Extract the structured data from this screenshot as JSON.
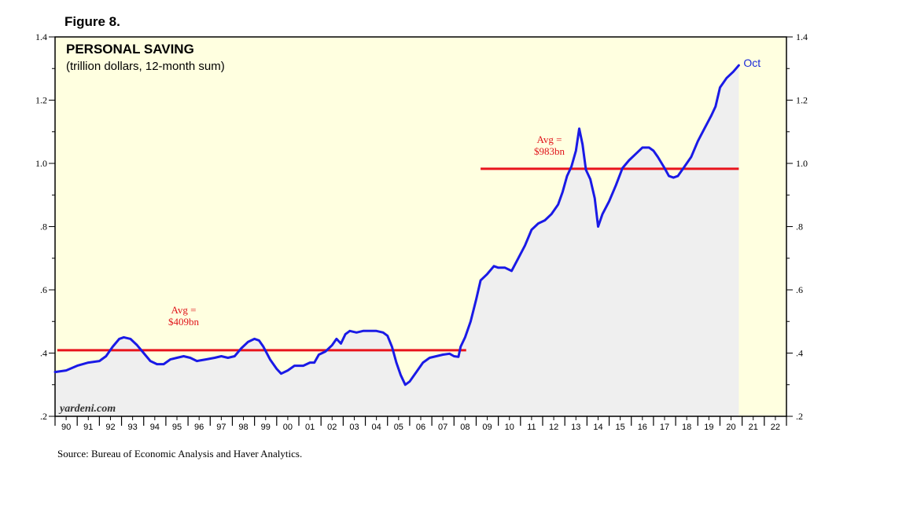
{
  "figure_label": "Figure 8.",
  "source": "Source: Bureau of Economic Analysis and Haver Analytics.",
  "colors": {
    "plot_bg": "#ffffe0",
    "area_fill": "#efefef",
    "line": "#1a1ae6",
    "avg_line": "#e8141c",
    "oct_label": "#1a2ad8"
  },
  "chart_data": {
    "type": "area",
    "title": "PERSONAL SAVING",
    "subtitle": "(trillion dollars, 12-month sum)",
    "watermark": "yardeni.com",
    "ylim": [
      0.2,
      1.4
    ],
    "xlim": [
      1990,
      2023
    ],
    "y_ticks": [
      {
        "value": 0.2,
        "label": ".2"
      },
      {
        "value": 0.4,
        "label": ".4"
      },
      {
        "value": 0.6,
        "label": ".6"
      },
      {
        "value": 0.8,
        "label": ".8"
      },
      {
        "value": 1.0,
        "label": "1.0"
      },
      {
        "value": 1.2,
        "label": "1.2"
      },
      {
        "value": 1.4,
        "label": "1.4"
      }
    ],
    "x_tick_labels": [
      "90",
      "91",
      "92",
      "93",
      "94",
      "95",
      "96",
      "97",
      "98",
      "99",
      "00",
      "01",
      "02",
      "03",
      "04",
      "05",
      "06",
      "07",
      "08",
      "09",
      "10",
      "11",
      "12",
      "13",
      "14",
      "15",
      "16",
      "17",
      "18",
      "19",
      "20",
      "21",
      "22"
    ],
    "last_point_label": "Oct",
    "series": [
      {
        "name": "Personal Saving",
        "points": [
          [
            1990.0,
            0.34
          ],
          [
            1990.5,
            0.345
          ],
          [
            1991.0,
            0.36
          ],
          [
            1991.5,
            0.37
          ],
          [
            1992.0,
            0.375
          ],
          [
            1992.3,
            0.39
          ],
          [
            1992.6,
            0.42
          ],
          [
            1992.9,
            0.445
          ],
          [
            1993.1,
            0.45
          ],
          [
            1993.4,
            0.445
          ],
          [
            1993.7,
            0.425
          ],
          [
            1994.0,
            0.4
          ],
          [
            1994.3,
            0.375
          ],
          [
            1994.6,
            0.365
          ],
          [
            1994.9,
            0.365
          ],
          [
            1995.2,
            0.38
          ],
          [
            1995.5,
            0.385
          ],
          [
            1995.8,
            0.39
          ],
          [
            1996.1,
            0.385
          ],
          [
            1996.4,
            0.375
          ],
          [
            1996.8,
            0.38
          ],
          [
            1997.2,
            0.385
          ],
          [
            1997.5,
            0.39
          ],
          [
            1997.8,
            0.385
          ],
          [
            1998.1,
            0.39
          ],
          [
            1998.4,
            0.415
          ],
          [
            1998.7,
            0.435
          ],
          [
            1999.0,
            0.445
          ],
          [
            1999.2,
            0.44
          ],
          [
            1999.4,
            0.42
          ],
          [
            1999.7,
            0.38
          ],
          [
            2000.0,
            0.35
          ],
          [
            2000.2,
            0.335
          ],
          [
            2000.5,
            0.345
          ],
          [
            2000.8,
            0.36
          ],
          [
            2001.2,
            0.36
          ],
          [
            2001.5,
            0.37
          ],
          [
            2001.7,
            0.37
          ],
          [
            2001.9,
            0.395
          ],
          [
            2002.2,
            0.405
          ],
          [
            2002.5,
            0.425
          ],
          [
            2002.7,
            0.445
          ],
          [
            2002.9,
            0.43
          ],
          [
            2003.1,
            0.46
          ],
          [
            2003.3,
            0.47
          ],
          [
            2003.6,
            0.465
          ],
          [
            2003.9,
            0.47
          ],
          [
            2004.2,
            0.47
          ],
          [
            2004.5,
            0.47
          ],
          [
            2004.8,
            0.465
          ],
          [
            2005.0,
            0.455
          ],
          [
            2005.2,
            0.42
          ],
          [
            2005.4,
            0.37
          ],
          [
            2005.6,
            0.33
          ],
          [
            2005.8,
            0.3
          ],
          [
            2006.0,
            0.31
          ],
          [
            2006.3,
            0.34
          ],
          [
            2006.6,
            0.37
          ],
          [
            2006.9,
            0.385
          ],
          [
            2007.2,
            0.39
          ],
          [
            2007.5,
            0.395
          ],
          [
            2007.8,
            0.398
          ],
          [
            2008.0,
            0.39
          ],
          [
            2008.2,
            0.388
          ],
          [
            2008.3,
            0.42
          ],
          [
            2008.5,
            0.45
          ],
          [
            2008.75,
            0.5
          ],
          [
            2009.0,
            0.57
          ],
          [
            2009.2,
            0.63
          ],
          [
            2009.5,
            0.65
          ],
          [
            2009.8,
            0.675
          ],
          [
            2010.0,
            0.67
          ],
          [
            2010.3,
            0.67
          ],
          [
            2010.6,
            0.66
          ],
          [
            2010.9,
            0.7
          ],
          [
            2011.2,
            0.74
          ],
          [
            2011.5,
            0.79
          ],
          [
            2011.8,
            0.81
          ],
          [
            2012.1,
            0.82
          ],
          [
            2012.4,
            0.84
          ],
          [
            2012.7,
            0.87
          ],
          [
            2012.9,
            0.91
          ],
          [
            2013.1,
            0.96
          ],
          [
            2013.3,
            0.99
          ],
          [
            2013.5,
            1.04
          ],
          [
            2013.65,
            1.11
          ],
          [
            2013.8,
            1.06
          ],
          [
            2013.95,
            0.98
          ],
          [
            2014.15,
            0.95
          ],
          [
            2014.35,
            0.89
          ],
          [
            2014.5,
            0.8
          ],
          [
            2014.7,
            0.84
          ],
          [
            2015.0,
            0.88
          ],
          [
            2015.3,
            0.93
          ],
          [
            2015.6,
            0.985
          ],
          [
            2015.9,
            1.01
          ],
          [
            2016.2,
            1.03
          ],
          [
            2016.5,
            1.05
          ],
          [
            2016.8,
            1.05
          ],
          [
            2017.0,
            1.04
          ],
          [
            2017.2,
            1.02
          ],
          [
            2017.5,
            0.985
          ],
          [
            2017.7,
            0.96
          ],
          [
            2017.9,
            0.955
          ],
          [
            2018.1,
            0.96
          ],
          [
            2018.4,
            0.99
          ],
          [
            2018.7,
            1.02
          ],
          [
            2019.0,
            1.07
          ],
          [
            2019.3,
            1.11
          ],
          [
            2019.6,
            1.15
          ],
          [
            2019.8,
            1.18
          ],
          [
            2020.0,
            1.24
          ],
          [
            2020.3,
            1.27
          ],
          [
            2020.6,
            1.29
          ],
          [
            2020.85,
            1.31
          ]
        ]
      }
    ],
    "averages": [
      {
        "label_line1": "Avg =",
        "label_line2": "$409bn",
        "value": 0.409,
        "x_start": 1990.1,
        "x_end": 2008.55
      },
      {
        "label_line1": "Avg =",
        "label_line2": "$983bn",
        "value": 0.983,
        "x_start": 2009.2,
        "x_end": 2020.85
      }
    ]
  }
}
